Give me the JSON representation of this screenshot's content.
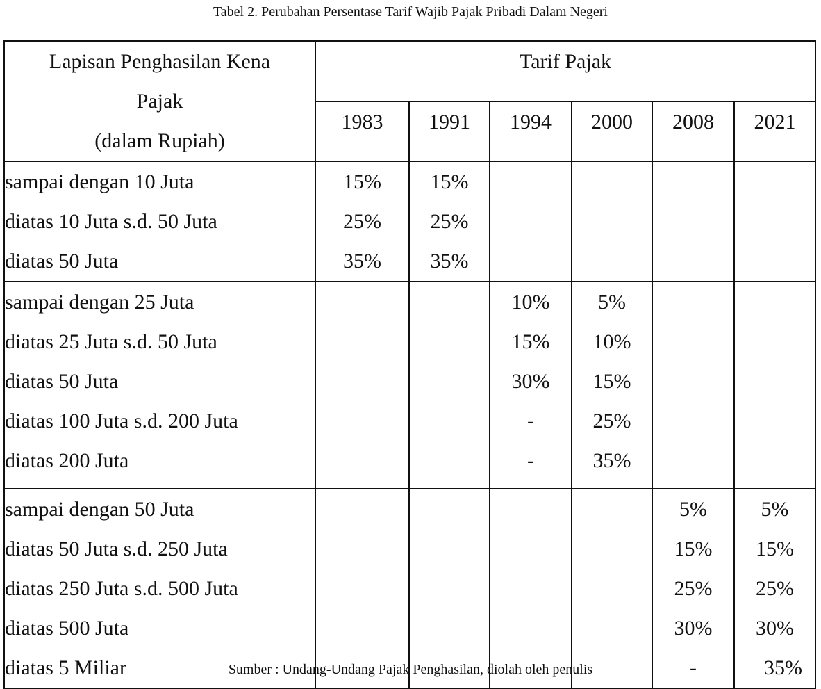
{
  "caption": "Tabel 2. Perubahan Persentase Tarif Wajib Pajak Pribadi Dalam Negeri",
  "source": "Sumber : Undang-Undang Pajak Penghasilan, diolah oleh penulis",
  "table": {
    "header_label_lines": [
      "Lapisan Penghasilan Kena",
      "Pajak",
      "(dalam Rupiah)"
    ],
    "header_group": "Tarif Pajak",
    "years": [
      "1983",
      "1991",
      "1994",
      "2000",
      "2008",
      "2021"
    ],
    "groups": [
      {
        "rows": [
          {
            "label": "sampai dengan 10 Juta",
            "values": [
              "15%",
              "15%",
              "",
              "",
              "",
              ""
            ]
          },
          {
            "label": "diatas 10 Juta s.d. 50 Juta",
            "values": [
              "25%",
              "25%",
              "",
              "",
              "",
              ""
            ]
          },
          {
            "label": "diatas 50 Juta",
            "values": [
              "35%",
              "35%",
              "",
              "",
              "",
              ""
            ]
          }
        ]
      },
      {
        "rows": [
          {
            "label": "sampai dengan 25 Juta",
            "values": [
              "",
              "",
              "10%",
              "5%",
              "",
              ""
            ]
          },
          {
            "label": "diatas 25 Juta s.d. 50 Juta",
            "values": [
              "",
              "",
              "15%",
              "10%",
              "",
              ""
            ]
          },
          {
            "label": "diatas 50 Juta",
            "values": [
              "",
              "",
              "30%",
              "15%",
              "",
              ""
            ]
          },
          {
            "label": "diatas 100 Juta s.d. 200 Juta",
            "values": [
              "",
              "",
              "-",
              "25%",
              "",
              ""
            ]
          },
          {
            "label": "diatas 200 Juta",
            "values": [
              "",
              "",
              "-",
              "35%",
              "",
              ""
            ]
          }
        ]
      },
      {
        "rows": [
          {
            "label": "sampai dengan 50 Juta",
            "values": [
              "",
              "",
              "",
              "",
              "5%",
              "5%"
            ]
          },
          {
            "label": "diatas 50 Juta s.d. 250 Juta",
            "values": [
              "",
              "",
              "",
              "",
              "15%",
              "15%"
            ]
          },
          {
            "label": "diatas 250 Juta s.d. 500 Juta",
            "values": [
              "",
              "",
              "",
              "",
              "25%",
              "25%"
            ]
          },
          {
            "label": "diatas 500 Juta",
            "values": [
              "",
              "",
              "",
              "",
              "30%",
              "30%"
            ]
          },
          {
            "label": "diatas 5 Miliar",
            "values": [
              "",
              "",
              "",
              "",
              "-",
              "35%"
            ]
          }
        ]
      }
    ]
  }
}
